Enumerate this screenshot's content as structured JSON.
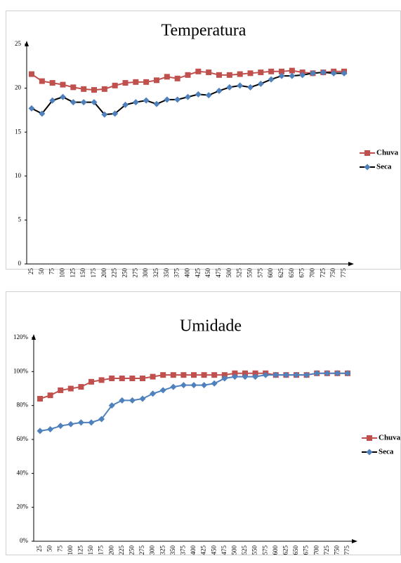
{
  "chart_data": [
    {
      "type": "line",
      "title": "Temperatura",
      "categories": [
        "25",
        "50",
        "75",
        "100",
        "125",
        "150",
        "175",
        "200",
        "225",
        "250",
        "275",
        "300",
        "325",
        "350",
        "375",
        "400",
        "425",
        "450",
        "475",
        "500",
        "525",
        "550",
        "575",
        "600",
        "625",
        "650",
        "675",
        "700",
        "725",
        "750",
        "775"
      ],
      "ylim": [
        0,
        25
      ],
      "yticks": [
        0,
        5,
        10,
        15,
        20,
        25
      ],
      "grid": false,
      "legend": "right",
      "series": [
        {
          "name": "Chuva",
          "color": "#c0504d",
          "marker": "square",
          "marker_color": "#c0504d",
          "values": [
            21.6,
            20.8,
            20.6,
            20.4,
            20.1,
            19.9,
            19.8,
            19.9,
            20.3,
            20.6,
            20.7,
            20.7,
            20.9,
            21.3,
            21.1,
            21.5,
            21.9,
            21.8,
            21.5,
            21.5,
            21.6,
            21.7,
            21.8,
            21.9,
            21.9,
            22.0,
            21.8,
            21.7,
            21.8,
            21.9,
            21.9
          ]
        },
        {
          "name": "Seca",
          "color": "#000000",
          "marker": "diamond",
          "marker_color": "#4f81bd",
          "values": [
            17.7,
            17.1,
            18.6,
            19.0,
            18.4,
            18.4,
            18.4,
            17.0,
            17.1,
            18.1,
            18.4,
            18.6,
            18.2,
            18.7,
            18.7,
            19.0,
            19.3,
            19.2,
            19.7,
            20.1,
            20.3,
            20.1,
            20.5,
            21.0,
            21.4,
            21.4,
            21.5,
            21.7,
            21.8,
            21.7,
            21.7
          ]
        }
      ]
    },
    {
      "type": "line",
      "title": "Umidade",
      "categories": [
        "25",
        "50",
        "75",
        "100",
        "125",
        "150",
        "175",
        "200",
        "225",
        "250",
        "275",
        "300",
        "325",
        "350",
        "375",
        "400",
        "425",
        "450",
        "475",
        "500",
        "525",
        "550",
        "575",
        "600",
        "625",
        "650",
        "675",
        "700",
        "725",
        "750",
        "775"
      ],
      "ylim": [
        0,
        120
      ],
      "yticks": [
        {
          "value": 0,
          "label": "0%"
        },
        {
          "value": 20,
          "label": "20%"
        },
        {
          "value": 40,
          "label": "40%"
        },
        {
          "value": 60,
          "label": "60%"
        },
        {
          "value": 80,
          "label": "80%"
        },
        {
          "value": 100,
          "label": "100%"
        },
        {
          "value": 120,
          "label": "120%"
        }
      ],
      "grid": false,
      "legend": "right",
      "series": [
        {
          "name": "Chuva",
          "color": "#c0504d",
          "marker": "square",
          "marker_color": "#c0504d",
          "values": [
            84,
            86,
            89,
            90,
            91,
            94,
            95,
            96,
            96,
            96,
            96,
            97,
            98,
            98,
            98,
            98,
            98,
            98,
            98,
            99,
            99,
            99,
            99,
            98,
            98,
            98,
            98,
            99,
            99,
            99,
            99
          ]
        },
        {
          "name": "Seca",
          "color": "#4f81bd",
          "marker": "diamond",
          "marker_color": "#4f81bd",
          "legend_color": "#000000",
          "values": [
            65,
            66,
            68,
            69,
            70,
            70,
            72,
            80,
            83,
            83,
            84,
            87,
            89,
            91,
            92,
            92,
            92,
            93,
            96,
            97,
            97,
            97,
            98,
            98,
            98,
            98,
            98,
            99,
            99,
            99,
            99
          ]
        }
      ]
    }
  ]
}
